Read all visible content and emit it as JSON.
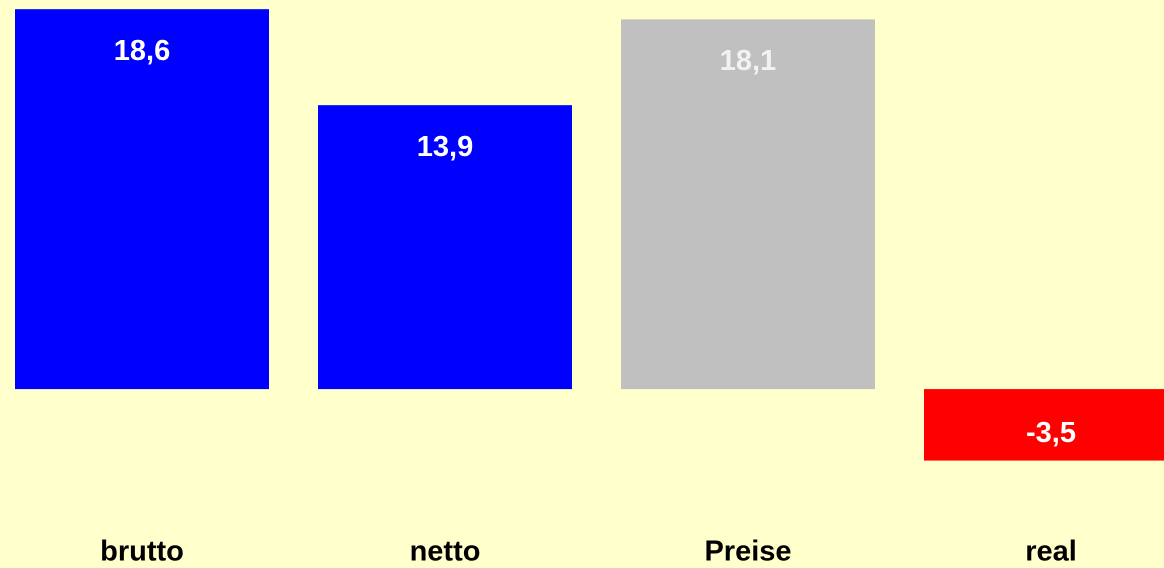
{
  "chart_data": {
    "type": "bar",
    "categories": [
      "brutto",
      "netto",
      "Preise",
      "real"
    ],
    "values": [
      18.6,
      13.9,
      18.1,
      -3.5
    ],
    "value_labels": [
      "18,6",
      "13,9",
      "18,1",
      "-3,5"
    ],
    "colors": [
      "#0000ff",
      "#0000ff",
      "#c0c0c0",
      "#ff0000"
    ],
    "ylim": [
      -4.5,
      19
    ]
  }
}
